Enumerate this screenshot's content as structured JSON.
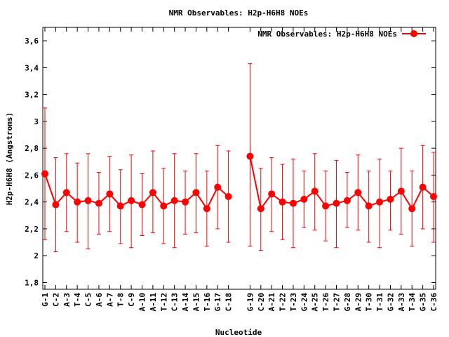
{
  "chart_data": {
    "type": "line",
    "title": "NMR Observables: H2p-H6H8 NOEs",
    "xlabel": "Nucleotide",
    "ylabel": "H2p-H6H8 (Angstroms)",
    "ylim": [
      1.75,
      3.7
    ],
    "yticks": [
      "1,8",
      "2",
      "2,2",
      "2,4",
      "2,6",
      "2,8",
      "3",
      "3,2",
      "3,4",
      "3,6"
    ],
    "grid": false,
    "legend_position": "top-right",
    "color": "#ff0000",
    "series": [
      {
        "name": "NMR Observables: H2p-H6H8 NOEs",
        "groups": [
          {
            "categories": [
              "G-1",
              "C-2",
              "A-3",
              "T-4",
              "C-5",
              "A-6",
              "A-7",
              "T-8",
              "C-9",
              "A-10",
              "A-11",
              "T-12",
              "C-13",
              "A-14",
              "A-15",
              "T-16",
              "G-17",
              "C-18"
            ],
            "values": [
              2.61,
              2.38,
              2.47,
              2.4,
              2.41,
              2.39,
              2.46,
              2.37,
              2.41,
              2.38,
              2.47,
              2.37,
              2.41,
              2.4,
              2.47,
              2.35,
              2.51,
              2.44
            ],
            "error_low": [
              2.12,
              2.03,
              2.18,
              2.1,
              2.05,
              2.16,
              2.18,
              2.09,
              2.06,
              2.15,
              2.17,
              2.09,
              2.06,
              2.16,
              2.17,
              2.07,
              2.2,
              2.1
            ],
            "error_high": [
              3.1,
              2.73,
              2.76,
              2.69,
              2.76,
              2.62,
              2.74,
              2.64,
              2.75,
              2.61,
              2.78,
              2.65,
              2.76,
              2.63,
              2.76,
              2.63,
              2.82,
              2.78
            ]
          },
          {
            "categories": [
              "G-19",
              "C-20",
              "A-21",
              "T-22",
              "T-23",
              "G-24",
              "A-25",
              "T-26",
              "T-27",
              "G-28",
              "A-29",
              "T-30",
              "T-31",
              "G-32",
              "A-33",
              "T-34",
              "G-35",
              "C-36"
            ],
            "values": [
              2.74,
              2.35,
              2.46,
              2.4,
              2.39,
              2.42,
              2.48,
              2.37,
              2.39,
              2.41,
              2.47,
              2.37,
              2.4,
              2.42,
              2.48,
              2.35,
              2.51,
              2.44
            ],
            "error_low": [
              2.07,
              2.04,
              2.18,
              2.12,
              2.06,
              2.21,
              2.19,
              2.11,
              2.06,
              2.21,
              2.19,
              2.1,
              2.06,
              2.19,
              2.16,
              2.07,
              2.2,
              2.1
            ],
            "error_high": [
              3.43,
              2.65,
              2.73,
              2.68,
              2.72,
              2.63,
              2.76,
              2.63,
              2.71,
              2.62,
              2.75,
              2.63,
              2.72,
              2.63,
              2.8,
              2.63,
              2.82,
              2.77
            ]
          }
        ]
      }
    ]
  }
}
